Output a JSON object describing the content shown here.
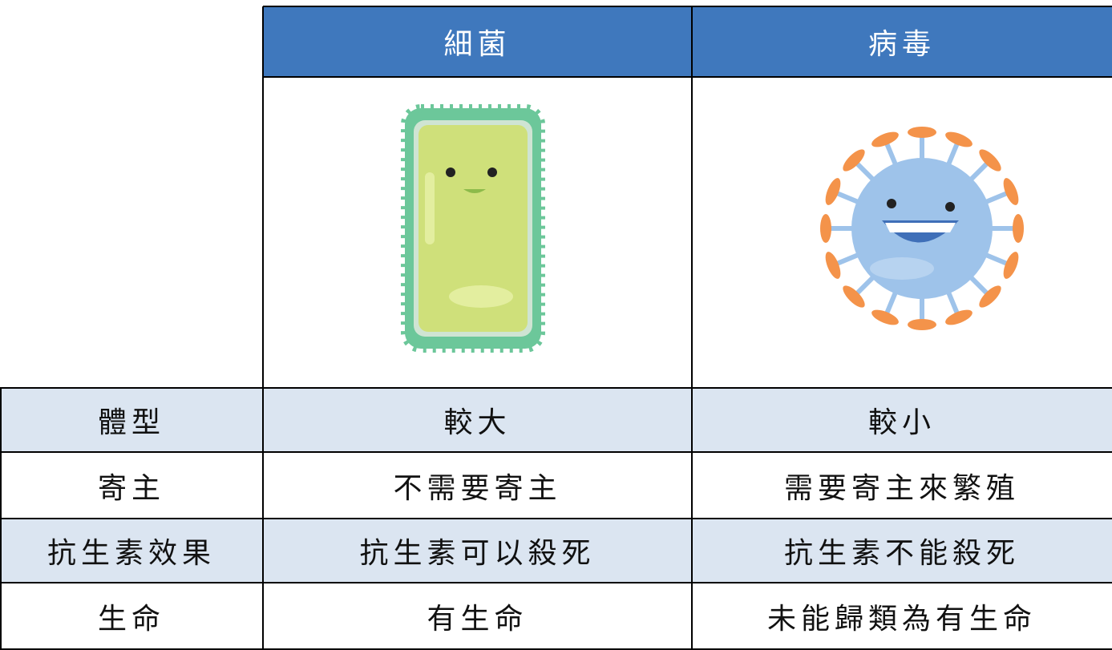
{
  "table": {
    "header": [
      "細菌",
      "病毒"
    ],
    "rows": [
      [
        "體型",
        "較大",
        "較小"
      ],
      [
        "寄主",
        "不需要寄主",
        "需要寄主來繁殖"
      ],
      [
        "抗生素效果",
        "抗生素可以殺死",
        "抗生素不能殺死"
      ],
      [
        "生命",
        "有生命",
        "未能歸類為有生命"
      ]
    ]
  }
}
